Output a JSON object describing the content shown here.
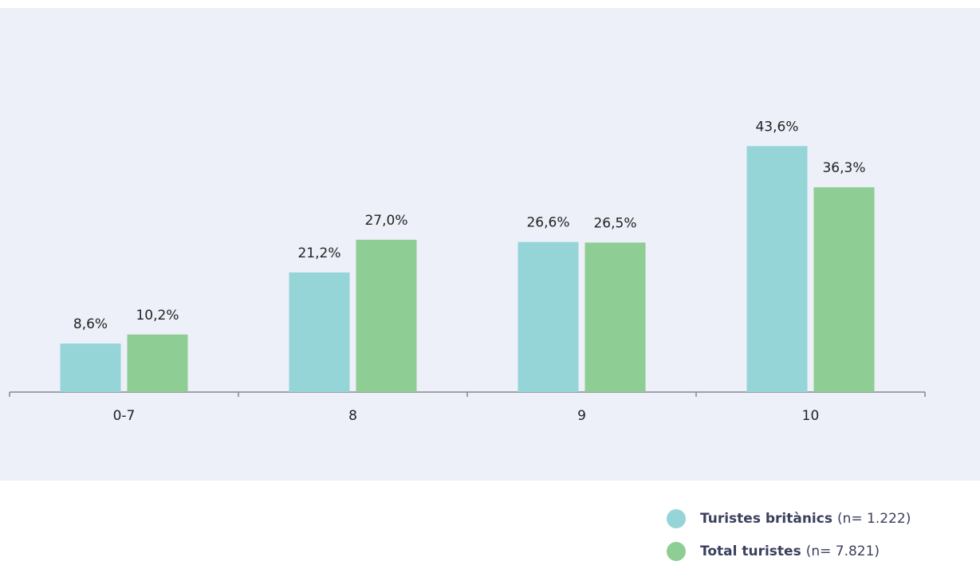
{
  "chart_data": {
    "type": "bar",
    "categories": [
      "0-7",
      "8",
      "9",
      "10"
    ],
    "series": [
      {
        "name": "Turistes britànics",
        "sample": "(n= 1.222)",
        "color": "#95d5d8",
        "values": [
          8.6,
          21.2,
          26.6,
          43.6
        ],
        "value_labels": [
          "8,6%",
          "21,2%",
          "26,6%",
          "43,6%"
        ]
      },
      {
        "name": "Total turistes",
        "sample": "(n= 7.821)",
        "color": "#8ecd93",
        "values": [
          10.2,
          27.0,
          26.5,
          36.3
        ],
        "value_labels": [
          "10,2%",
          "27,0%",
          "26,5%",
          "36,3%"
        ]
      }
    ],
    "ylim": [
      0,
      50
    ],
    "legend": "bottom-right"
  }
}
